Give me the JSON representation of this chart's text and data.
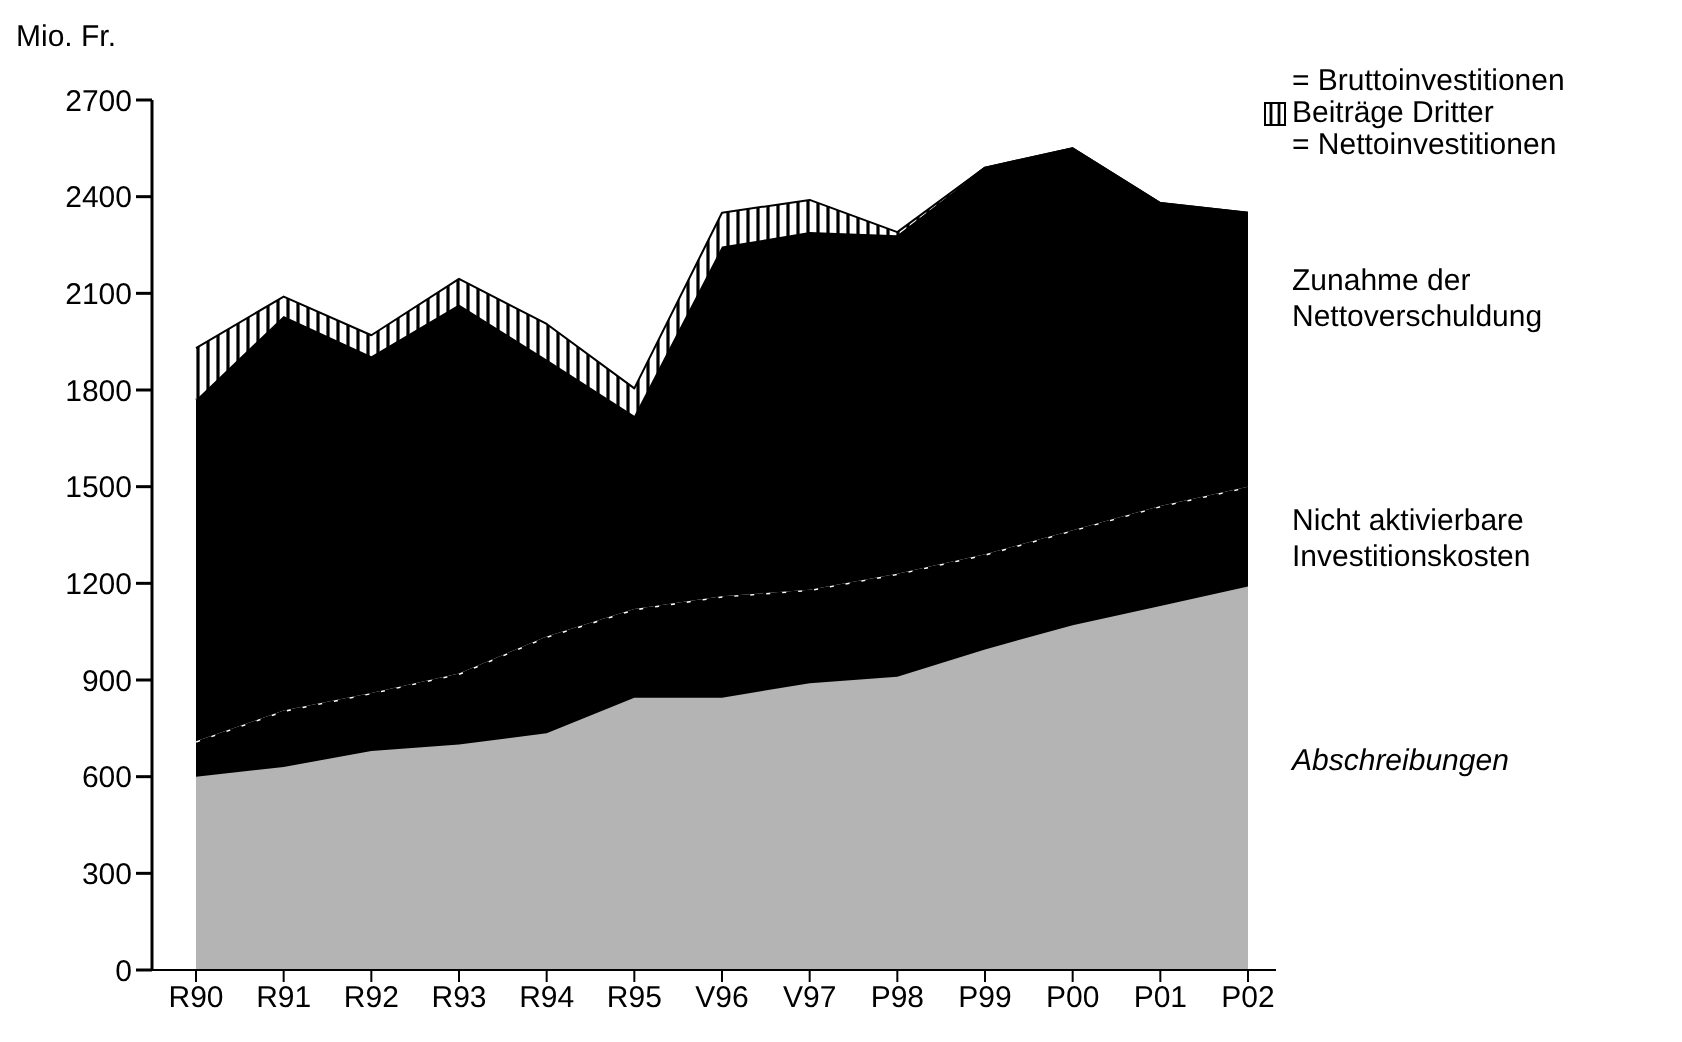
{
  "chart_data": {
    "type": "area",
    "stacked": true,
    "ylabel": "Mio. Fr.",
    "categories": [
      "R90",
      "R91",
      "R92",
      "R93",
      "R94",
      "R95",
      "V96",
      "V97",
      "P98",
      "P99",
      "P00",
      "P01",
      "P02"
    ],
    "ylim": [
      0,
      2700
    ],
    "yticks": [
      0,
      300,
      600,
      900,
      1200,
      1500,
      1800,
      2100,
      2400,
      2700
    ],
    "legend": "right",
    "series": [
      {
        "name": "Abschreibungen",
        "color": "#b4b4b4",
        "values": [
          600,
          630,
          680,
          700,
          735,
          845,
          845,
          890,
          910,
          995,
          1070,
          1130,
          1190
        ]
      },
      {
        "name": "Nicht aktivierbare Investitionskosten",
        "color": "#000000",
        "values": [
          110,
          175,
          180,
          220,
          300,
          275,
          315,
          290,
          320,
          295,
          295,
          310,
          310
        ]
      },
      {
        "name": "Zunahme der Nettoverschuldung",
        "color": "#000000",
        "values": [
          1060,
          1225,
          1045,
          1145,
          860,
          600,
          1085,
          1110,
          1050,
          1200,
          1185,
          940,
          850
        ]
      },
      {
        "name": "Beiträge Dritter",
        "color": "#ffffff",
        "values": [
          160,
          60,
          65,
          80,
          110,
          85,
          105,
          100,
          10,
          0,
          0,
          0,
          0
        ]
      }
    ],
    "annotations": [
      "= Bruttoinvestitionen",
      "= Nettoinvestitionen"
    ]
  }
}
